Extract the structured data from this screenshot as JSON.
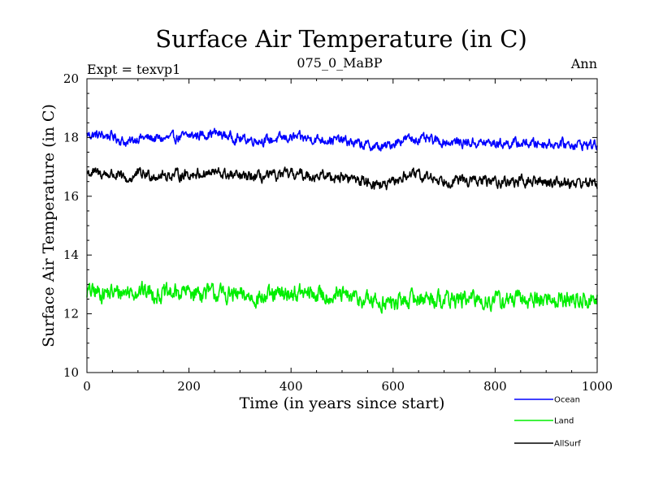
{
  "chart_data": {
    "type": "line",
    "title": "Surface Air Temperature (in C)",
    "subtitle_left": "Expt = texvp1",
    "subtitle_center": "075_0_MaBP",
    "subtitle_right": "Ann",
    "xlabel": "Time (in years since start)",
    "ylabel": "Surface Air Temperature (in C)",
    "xlim": [
      0,
      1000
    ],
    "ylim": [
      10,
      20
    ],
    "x_ticks": [
      0,
      200,
      400,
      600,
      800,
      1000
    ],
    "x_tick_labels": [
      "0",
      "200",
      "400",
      "600",
      "800",
      "1000"
    ],
    "y_ticks": [
      10,
      12,
      14,
      16,
      18,
      20
    ],
    "y_tick_labels": [
      "10",
      "12",
      "14",
      "16",
      "18",
      "20"
    ],
    "grid": false,
    "legend_position": "bottom-right",
    "series": [
      {
        "name": "Ocean",
        "color": "#0000ff",
        "mean_points": [
          [
            0,
            18.1
          ],
          [
            50,
            18.05
          ],
          [
            80,
            17.8
          ],
          [
            100,
            18.0
          ],
          [
            150,
            17.95
          ],
          [
            200,
            18.05
          ],
          [
            250,
            18.15
          ],
          [
            300,
            17.95
          ],
          [
            350,
            17.9
          ],
          [
            400,
            18.0
          ],
          [
            450,
            17.95
          ],
          [
            500,
            17.9
          ],
          [
            540,
            17.75
          ],
          [
            580,
            17.65
          ],
          [
            620,
            17.95
          ],
          [
            650,
            17.95
          ],
          [
            700,
            17.85
          ],
          [
            800,
            17.8
          ],
          [
            900,
            17.8
          ],
          [
            1000,
            17.75
          ]
        ],
        "noise_amplitude": 0.18
      },
      {
        "name": "Land",
        "color": "#00ee00",
        "mean_points": [
          [
            0,
            12.75
          ],
          [
            50,
            12.7
          ],
          [
            100,
            12.8
          ],
          [
            150,
            12.65
          ],
          [
            200,
            12.75
          ],
          [
            250,
            12.7
          ],
          [
            300,
            12.6
          ],
          [
            350,
            12.55
          ],
          [
            400,
            12.7
          ],
          [
            450,
            12.65
          ],
          [
            500,
            12.6
          ],
          [
            550,
            12.45
          ],
          [
            600,
            12.35
          ],
          [
            650,
            12.55
          ],
          [
            700,
            12.5
          ],
          [
            800,
            12.45
          ],
          [
            900,
            12.5
          ],
          [
            1000,
            12.45
          ]
        ],
        "noise_amplitude": 0.32
      },
      {
        "name": "AllSurf",
        "color": "#000000",
        "mean_points": [
          [
            0,
            16.8
          ],
          [
            50,
            16.75
          ],
          [
            80,
            16.55
          ],
          [
            100,
            16.75
          ],
          [
            150,
            16.7
          ],
          [
            200,
            16.75
          ],
          [
            250,
            16.8
          ],
          [
            300,
            16.65
          ],
          [
            350,
            16.65
          ],
          [
            400,
            16.75
          ],
          [
            450,
            16.7
          ],
          [
            500,
            16.65
          ],
          [
            550,
            16.5
          ],
          [
            590,
            16.35
          ],
          [
            630,
            16.75
          ],
          [
            700,
            16.55
          ],
          [
            800,
            16.5
          ],
          [
            900,
            16.5
          ],
          [
            1000,
            16.45
          ]
        ],
        "noise_amplitude": 0.2
      }
    ]
  }
}
